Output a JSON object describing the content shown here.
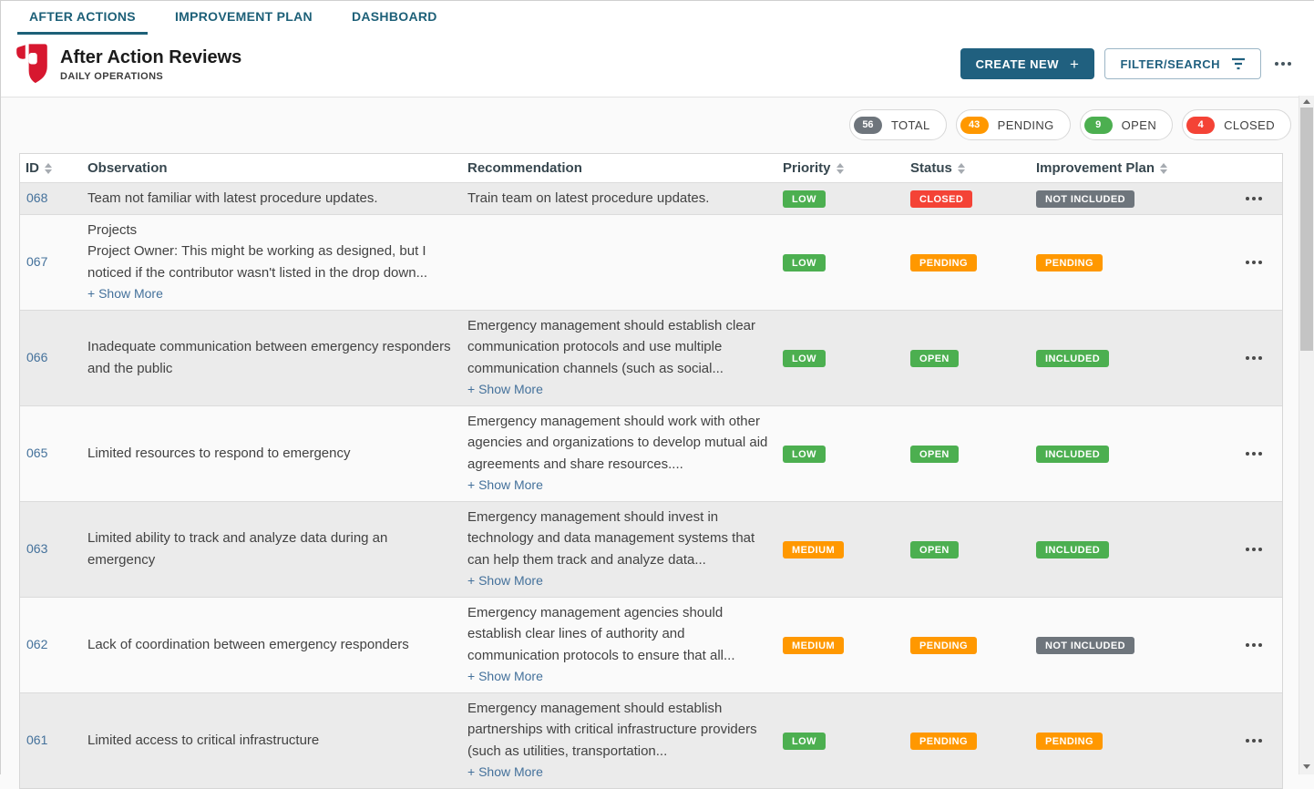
{
  "tabs": [
    {
      "label": "AFTER ACTIONS",
      "active": true
    },
    {
      "label": "IMPROVEMENT PLAN",
      "active": false
    },
    {
      "label": "DASHBOARD",
      "active": false
    }
  ],
  "header": {
    "title": "After Action Reviews",
    "subtitle": "DAILY OPERATIONS",
    "create_button": "CREATE NEW",
    "create_plus": "+",
    "filter_button": "FILTER/SEARCH"
  },
  "stats": [
    {
      "count": "56",
      "label": "TOTAL",
      "color": "gray"
    },
    {
      "count": "43",
      "label": "PENDING",
      "color": "orange"
    },
    {
      "count": "9",
      "label": "OPEN",
      "color": "green"
    },
    {
      "count": "4",
      "label": "CLOSED",
      "color": "red"
    }
  ],
  "table": {
    "show_more_label": "+ Show More",
    "columns": [
      {
        "label": "ID",
        "sortable": true
      },
      {
        "label": "Observation",
        "sortable": false
      },
      {
        "label": "Recommendation",
        "sortable": false
      },
      {
        "label": "Priority",
        "sortable": true
      },
      {
        "label": "Status",
        "sortable": true
      },
      {
        "label": "Improvement Plan",
        "sortable": true
      },
      {
        "label": "",
        "sortable": false
      }
    ],
    "rows": [
      {
        "id": "068",
        "observation": [
          "Team not familiar with latest procedure updates."
        ],
        "obs_show_more": false,
        "recommendation": "Train team on latest procedure updates.",
        "rec_show_more": false,
        "priority": "LOW",
        "priority_color": "green",
        "status": "CLOSED",
        "status_color": "red",
        "plan": "NOT INCLUDED",
        "plan_color": "gray"
      },
      {
        "id": "067",
        "observation": [
          "Projects",
          "Project Owner: This might be working as designed, but I noticed if the contributor wasn't listed in the drop down..."
        ],
        "obs_show_more": true,
        "recommendation": "",
        "rec_show_more": false,
        "priority": "LOW",
        "priority_color": "green",
        "status": "PENDING",
        "status_color": "orange",
        "plan": "PENDING",
        "plan_color": "orange"
      },
      {
        "id": "066",
        "observation": [
          "Inadequate communication between emergency responders and the public"
        ],
        "obs_show_more": false,
        "recommendation": "Emergency management should establish clear communication protocols and use multiple communication channels (such as social...",
        "rec_show_more": true,
        "priority": "LOW",
        "priority_color": "green",
        "status": "OPEN",
        "status_color": "green",
        "plan": "INCLUDED",
        "plan_color": "green"
      },
      {
        "id": "065",
        "observation": [
          "Limited resources to respond to emergency"
        ],
        "obs_show_more": false,
        "recommendation": "Emergency management should work with other agencies and organizations to develop mutual aid agreements and share resources....",
        "rec_show_more": true,
        "priority": "LOW",
        "priority_color": "green",
        "status": "OPEN",
        "status_color": "green",
        "plan": "INCLUDED",
        "plan_color": "green"
      },
      {
        "id": "063",
        "observation": [
          "Limited ability to track and analyze data during an emergency"
        ],
        "obs_show_more": false,
        "recommendation": "Emergency management should invest in technology and data management systems that can help them track and analyze data...",
        "rec_show_more": true,
        "priority": "MEDIUM",
        "priority_color": "orange",
        "status": "OPEN",
        "status_color": "green",
        "plan": "INCLUDED",
        "plan_color": "green"
      },
      {
        "id": "062",
        "observation": [
          "Lack of coordination between emergency responders"
        ],
        "obs_show_more": false,
        "recommendation": "Emergency management agencies should establish clear lines of authority and communication protocols to ensure that all...",
        "rec_show_more": true,
        "priority": "MEDIUM",
        "priority_color": "orange",
        "status": "PENDING",
        "status_color": "orange",
        "plan": "NOT INCLUDED",
        "plan_color": "gray"
      },
      {
        "id": "061",
        "observation": [
          "Limited access to critical infrastructure"
        ],
        "obs_show_more": false,
        "recommendation": "Emergency management should establish partnerships with critical infrastructure providers (such as utilities, transportation...",
        "rec_show_more": true,
        "priority": "LOW",
        "priority_color": "green",
        "status": "PENDING",
        "status_color": "orange",
        "plan": "PENDING",
        "plan_color": "orange"
      }
    ]
  },
  "colors": {
    "green": "#4caf50",
    "orange": "#ff9800",
    "red": "#f44336",
    "gray": "#6e757c",
    "accent": "#20607f",
    "link": "#44719b"
  }
}
